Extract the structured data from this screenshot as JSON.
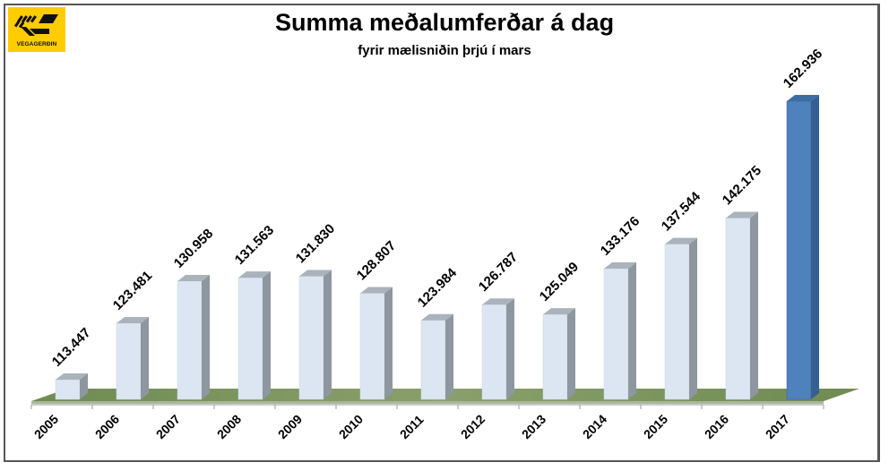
{
  "logo": {
    "text": "VEGAGERÐIN",
    "color": "#ffcc00"
  },
  "chart_data": {
    "type": "bar",
    "title": "Summa meðalumferðar á dag",
    "subtitle": "fyrir mælisniðin þrjú í mars",
    "xlabel": "",
    "ylabel": "",
    "categories": [
      "2005",
      "2006",
      "2007",
      "2008",
      "2009",
      "2010",
      "2011",
      "2012",
      "2013",
      "2014",
      "2015",
      "2016",
      "2017"
    ],
    "values": [
      113.447,
      123.481,
      130.958,
      131.563,
      131.83,
      128.807,
      123.984,
      126.787,
      125.049,
      133.176,
      137.544,
      142.175,
      162.936
    ],
    "value_labels": [
      "113.447",
      "123.481",
      "130.958",
      "131.563",
      "131.830",
      "128.807",
      "123.984",
      "126.787",
      "125.049",
      "133.176",
      "137.544",
      "142.175",
      "162.936"
    ],
    "ylim": [
      110,
      165
    ],
    "grid": false,
    "legend": null,
    "style": "3d-column",
    "colors": {
      "default_bar": "#dce6f2",
      "highlight_bar": "#4f81bd",
      "floor": "#77905a"
    },
    "highlight_index": 12
  }
}
